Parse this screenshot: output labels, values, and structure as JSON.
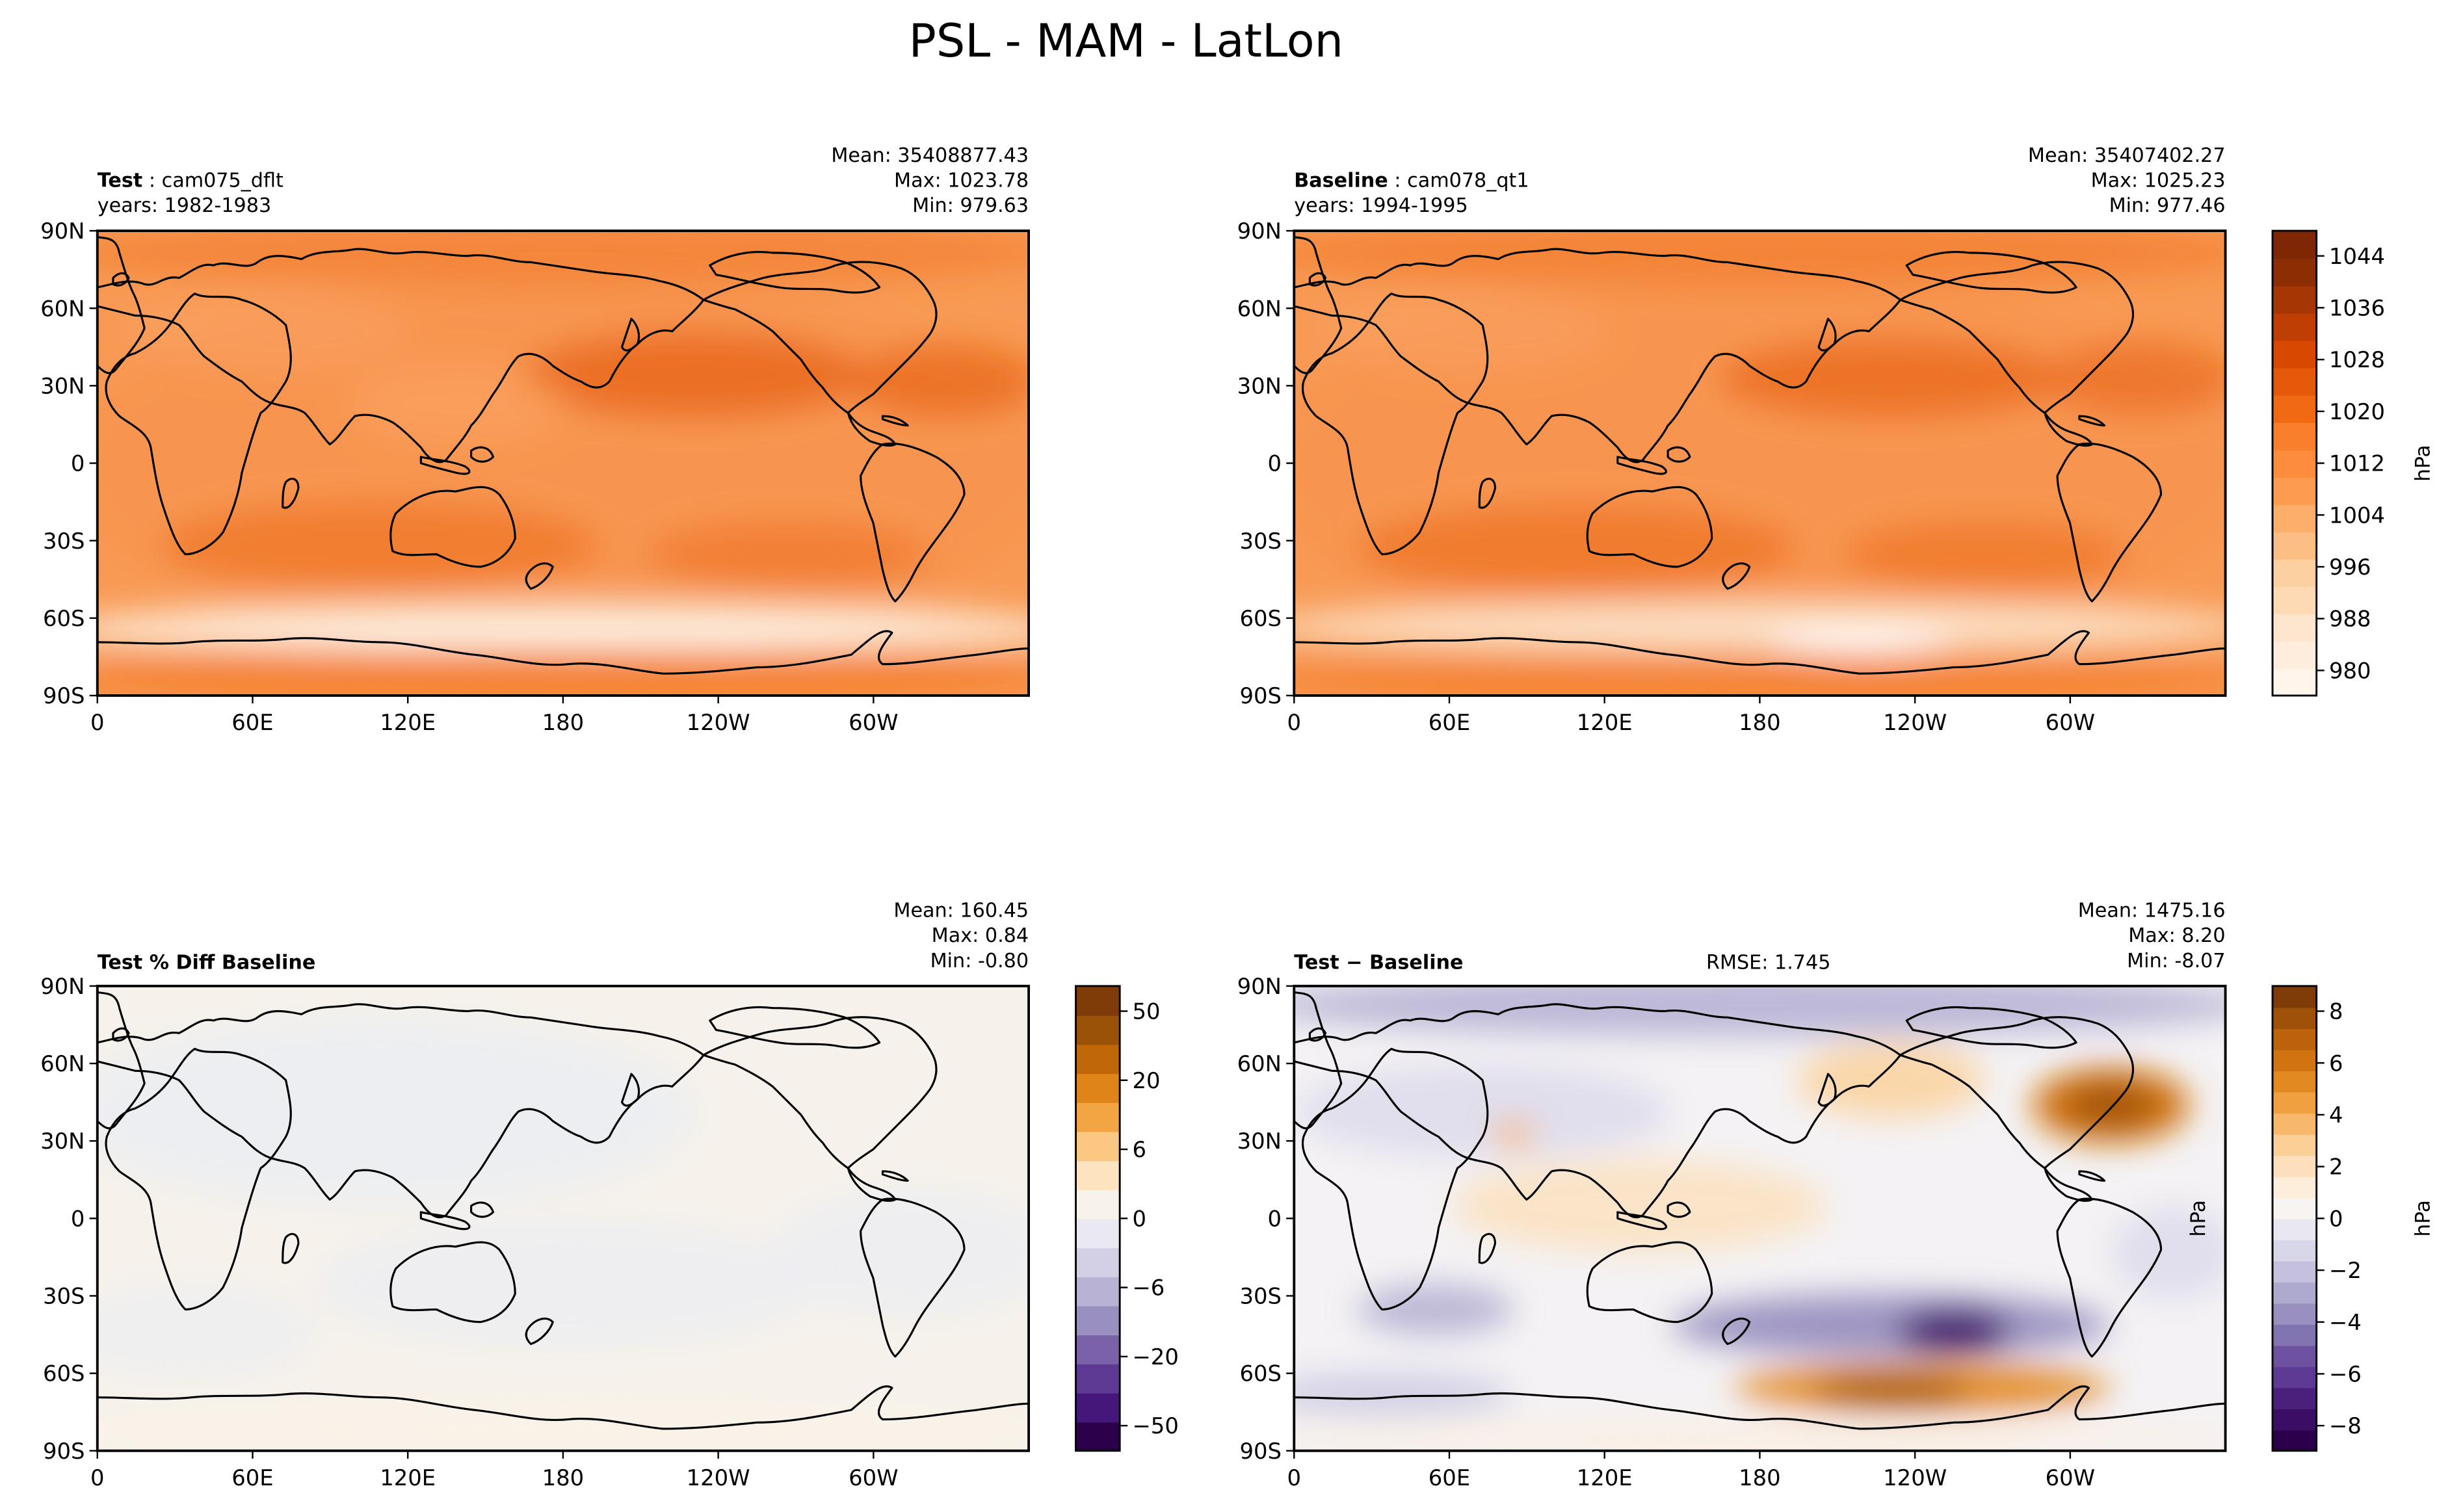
{
  "figure": {
    "title": "PSL - MAM - LatLon"
  },
  "axes": {
    "x_ticks": [
      "0",
      "60E",
      "120E",
      "180",
      "120W",
      "60W"
    ],
    "y_ticks": [
      "90N",
      "60N",
      "30N",
      "0",
      "30S",
      "60S",
      "90S"
    ]
  },
  "panels": [
    {
      "id": "test",
      "title_bold": "Test",
      "title_rest": ": cam075_dflt",
      "subtitle": "years: 1982-1983",
      "stats": [
        "Mean: 35408877.43",
        "Max: 1023.78",
        "Min: 979.63"
      ],
      "rmse": "",
      "colormap": "orange",
      "base_color": "#f89a55"
    },
    {
      "id": "baseline",
      "title_bold": "Baseline",
      "title_rest": ": cam078_qt1",
      "subtitle": "years: 1994-1995",
      "stats": [
        "Mean: 35407402.27",
        "Max: 1025.23",
        "Min: 977.46"
      ],
      "rmse": "",
      "colormap": "orange",
      "base_color": "#f89a55"
    },
    {
      "id": "pctdiff",
      "title_bold": "Test % Diff Baseline",
      "title_rest": "",
      "subtitle": "",
      "stats": [
        "Mean: 160.45",
        "Max:  0.84",
        "Min: -0.80"
      ],
      "rmse": "",
      "colormap": "puor",
      "base_color": "#f6f1ea"
    },
    {
      "id": "diff",
      "title_bold": "Test − Baseline",
      "title_rest": "",
      "subtitle": "",
      "stats": [
        "Mean: 1475.16",
        "Max:  8.20",
        "Min: -8.07"
      ],
      "rmse": "RMSE: 1.745",
      "colormap": "puor",
      "base_color": "#f4f2f4"
    }
  ],
  "colorbars": [
    {
      "id": "cbar-top",
      "label": "hPa",
      "ticks": [
        "1044",
        "1036",
        "1028",
        "1020",
        "1012",
        "1004",
        "996",
        "988",
        "980"
      ],
      "colors": [
        "#fff5eb",
        "#feeddc",
        "#fee6ce",
        "#fdd9b4",
        "#fdd0a2",
        "#fdbe85",
        "#fdae6b",
        "#fd9c51",
        "#fd8d3c",
        "#f87f2c",
        "#f16913",
        "#e5590a",
        "#d94801",
        "#bf3e03",
        "#a63603",
        "#8c2d04",
        "#7f2704"
      ]
    },
    {
      "id": "cbar-pct",
      "label": "",
      "ticks": [
        "50",
        "20",
        "6",
        "0",
        "−6",
        "−20",
        "−50"
      ],
      "colors": [
        "#2d004b",
        "#46177a",
        "#5e3a94",
        "#7a61a8",
        "#9990c0",
        "#b8b3d5",
        "#d3d0e6",
        "#eae8f1",
        "#f7f2ea",
        "#fde3c0",
        "#fbc883",
        "#f3a443",
        "#df8419",
        "#c06809",
        "#9a5207",
        "#7f3b08"
      ]
    },
    {
      "id": "cbar-diff",
      "label": "hPa",
      "side_label": "hPa",
      "ticks": [
        "8",
        "6",
        "4",
        "2",
        "0",
        "−2",
        "−4",
        "−6",
        "−8"
      ],
      "colors": [
        "#2d004b",
        "#3b0d64",
        "#4b1f7c",
        "#5e3a94",
        "#6f51a2",
        "#8273b1",
        "#9990c0",
        "#aea9cf",
        "#c4c0de",
        "#d8d6e9",
        "#e9e8f1",
        "#f7f4f2",
        "#fdeedc",
        "#fde0bb",
        "#fccf97",
        "#f8b86b",
        "#f0a040",
        "#e38922",
        "#d17311",
        "#bb620a",
        "#9f5207",
        "#7f3b08"
      ]
    }
  ],
  "legend_colors": {
    "coast": "#000000"
  }
}
